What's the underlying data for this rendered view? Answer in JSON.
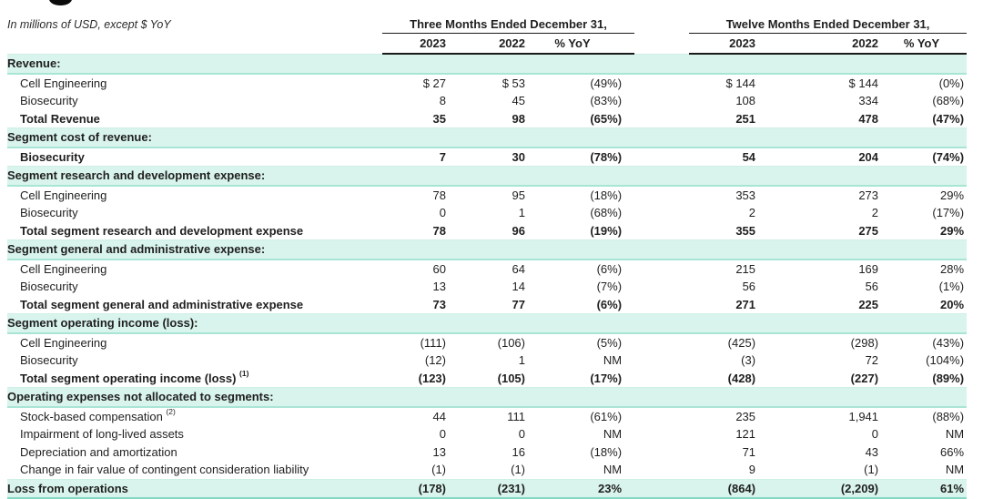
{
  "meta": {
    "note": "In millions of USD, except $ YoY"
  },
  "header": {
    "group1": "Three Months Ended December 31,",
    "group2": "Twelve Months Ended December 31,",
    "col_2023": "2023",
    "col_2022": "2022",
    "col_yoy": "% YoY"
  },
  "colors": {
    "ink": "#1f1f1f",
    "mint_bg": "#d9f4ec",
    "mint_border": "#a9e5d4",
    "mint_border_light": "#cdf0e6",
    "grand_border": "#86d8c4",
    "rule_black": "#1a1a1a"
  },
  "rows": [
    {
      "type": "section",
      "label": "Revenue:"
    },
    {
      "type": "item",
      "label": "Cell Engineering",
      "v": [
        "$ 27",
        "$ 53",
        "(49%)",
        "$ 144",
        "$ 144",
        "(0%)"
      ]
    },
    {
      "type": "item",
      "label": "Biosecurity",
      "v": [
        "8",
        "45",
        "(83%)",
        "108",
        "334",
        "(68%)"
      ]
    },
    {
      "type": "total",
      "label": "Total Revenue",
      "v": [
        "35",
        "98",
        "(65%)",
        "251",
        "478",
        "(47%)"
      ]
    },
    {
      "type": "section",
      "label": "Segment cost of revenue:"
    },
    {
      "type": "total",
      "label": "Biosecurity",
      "v": [
        "7",
        "30",
        "(78%)",
        "54",
        "204",
        "(74%)"
      ]
    },
    {
      "type": "section",
      "label": "Segment research and development expense:"
    },
    {
      "type": "item",
      "label": "Cell Engineering",
      "v": [
        "78",
        "95",
        "(18%)",
        "353",
        "273",
        "29%"
      ]
    },
    {
      "type": "item",
      "label": "Biosecurity",
      "v": [
        "0",
        "1",
        "(68%)",
        "2",
        "2",
        "(17%)"
      ]
    },
    {
      "type": "total",
      "label": "Total segment research and development expense",
      "v": [
        "78",
        "96",
        "(19%)",
        "355",
        "275",
        "29%"
      ]
    },
    {
      "type": "section",
      "label": "Segment general and administrative expense:"
    },
    {
      "type": "item",
      "label": "Cell Engineering",
      "v": [
        "60",
        "64",
        "(6%)",
        "215",
        "169",
        "28%"
      ]
    },
    {
      "type": "item",
      "label": "Biosecurity",
      "v": [
        "13",
        "14",
        "(7%)",
        "56",
        "56",
        "(1%)"
      ]
    },
    {
      "type": "total",
      "label": "Total segment general and administrative expense",
      "v": [
        "73",
        "77",
        "(6%)",
        "271",
        "225",
        "20%"
      ]
    },
    {
      "type": "section",
      "label": "Segment operating income (loss):"
    },
    {
      "type": "item",
      "label": "Cell Engineering",
      "v": [
        "(111)",
        "(106)",
        "(5%)",
        "(425)",
        "(298)",
        "(43%)"
      ]
    },
    {
      "type": "item",
      "label": "Biosecurity",
      "v": [
        "(12)",
        "1",
        "NM",
        "(3)",
        "72",
        "(104%)"
      ]
    },
    {
      "type": "total",
      "label": "Total segment operating income (loss)",
      "sup": "(1)",
      "v": [
        "(123)",
        "(105)",
        "(17%)",
        "(428)",
        "(227)",
        "(89%)"
      ]
    },
    {
      "type": "section",
      "label": "Operating expenses not allocated to segments:"
    },
    {
      "type": "item",
      "label": "Stock-based compensation",
      "sup": "(2)",
      "v": [
        "44",
        "111",
        "(61%)",
        "235",
        "1,941",
        "(88%)"
      ]
    },
    {
      "type": "item",
      "label": "Impairment of long-lived assets",
      "v": [
        "0",
        "0",
        "NM",
        "121",
        "0",
        "NM"
      ]
    },
    {
      "type": "item",
      "label": "Depreciation and amortization",
      "v": [
        "13",
        "16",
        "(18%)",
        "71",
        "43",
        "66%"
      ]
    },
    {
      "type": "item",
      "label": "Change in fair value of contingent consideration liability",
      "v": [
        "(1)",
        "(1)",
        "NM",
        "9",
        "(1)",
        "NM"
      ]
    },
    {
      "type": "grand",
      "label": "Loss from operations",
      "v": [
        "(178)",
        "(231)",
        "23%",
        "(864)",
        "(2,209)",
        "61%"
      ]
    }
  ]
}
